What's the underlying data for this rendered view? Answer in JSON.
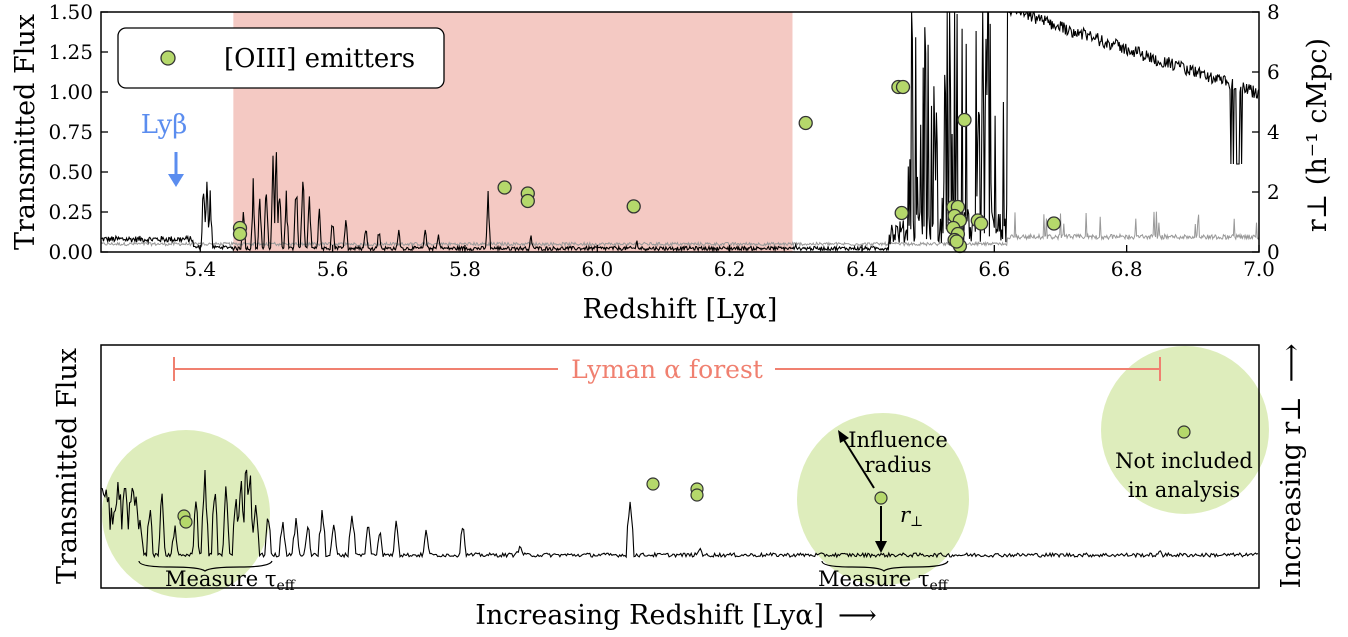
{
  "chart_data": [
    {
      "type": "line",
      "xlabel": "Redshift [Lyα]",
      "ylabel": "Transmitted Flux",
      "y2label": "r⊥ (h⁻¹ cMpc)",
      "xlim": [
        5.25,
        7.0
      ],
      "ylim": [
        0,
        1.5
      ],
      "y2lim": [
        0,
        8
      ],
      "x_ticks": [
        "5.4",
        "5.6",
        "5.8",
        "6.0",
        "6.2",
        "6.4",
        "6.6",
        "6.8",
        "7.0"
      ],
      "y_ticks": [
        "0.00",
        "0.25",
        "0.50",
        "0.75",
        "1.00",
        "1.25",
        "1.50"
      ],
      "y2_ticks": [
        "0",
        "2",
        "4",
        "6",
        "8"
      ],
      "shaded_region": {
        "x": [
          5.45,
          6.295
        ],
        "color": "#f2bfb8"
      },
      "annotation": {
        "text": "Lyβ",
        "x": 5.37,
        "color": "#5b8def"
      },
      "series": [
        {
          "name": "",
          "kind": "spectrum",
          "color": "#000000",
          "values_desc": "flux ~0 throughout forest with transmission spikes up to 0.75; sharp rise at z~6.46 to flux >1.5 then declining continuum ~1.0-1.2 by z=7.0"
        },
        {
          "name": "",
          "kind": "error",
          "color": "#888888"
        }
      ],
      "points_series": {
        "name": "[OIII] emitters",
        "color": "#b5d86b",
        "edge": "#333333",
        "points": [
          {
            "x": 5.46,
            "r": 0.8
          },
          {
            "x": 5.46,
            "r": 0.6
          },
          {
            "x": 5.86,
            "r": 2.15
          },
          {
            "x": 5.895,
            "r": 1.95
          },
          {
            "x": 5.895,
            "r": 1.7
          },
          {
            "x": 6.055,
            "r": 1.52
          },
          {
            "x": 6.315,
            "r": 4.3
          },
          {
            "x": 6.455,
            "r": 5.5
          },
          {
            "x": 6.462,
            "r": 5.5
          },
          {
            "x": 6.46,
            "r": 1.3
          },
          {
            "x": 6.555,
            "r": 4.4
          },
          {
            "x": 6.538,
            "r": 1.5
          },
          {
            "x": 6.545,
            "r": 1.5
          },
          {
            "x": 6.54,
            "r": 1.2
          },
          {
            "x": 6.548,
            "r": 1.05
          },
          {
            "x": 6.538,
            "r": 0.8
          },
          {
            "x": 6.545,
            "r": 0.6
          },
          {
            "x": 6.54,
            "r": 0.4
          },
          {
            "x": 6.548,
            "r": 0.2
          },
          {
            "x": 6.543,
            "r": 0.35
          },
          {
            "x": 6.575,
            "r": 1.05
          },
          {
            "x": 6.58,
            "r": 0.95
          },
          {
            "x": 6.69,
            "r": 0.95
          }
        ]
      },
      "legend": {
        "entries": [
          "[OIII] emitters"
        ],
        "position": "upper-left"
      }
    },
    {
      "type": "line",
      "xlabel": "Increasing Redshift [Lyα]",
      "ylabel": "Transmitted Flux",
      "y2label": "Increasing r⊥",
      "arrow": "⟶",
      "arrow_up": "⟶",
      "forest_label": "Lyman α forest",
      "forest_color": "#f08070",
      "annotations": {
        "measure1_main": "Measure τ",
        "measure1_sub": "eff",
        "measure2_main": "Measure τ",
        "measure2_sub": "eff",
        "influence_line1": "Influence",
        "influence_line2": "radius",
        "rperp_main": "r",
        "rperp_sub": "⊥",
        "notincl_line1": "Not included",
        "notincl_line2": "in analysis"
      },
      "circle_color": "#b5d86b"
    }
  ]
}
